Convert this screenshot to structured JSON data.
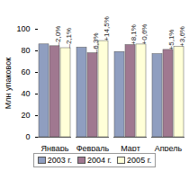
{
  "chart_data": {
    "type": "bar",
    "y_label": "Млн упаковок",
    "categories": [
      "Январь",
      "Февраль",
      "Март",
      "Апрель"
    ],
    "series": [
      {
        "name": "2003 г.",
        "color": "#8f9ec0",
        "values": [
          86,
          83,
          79,
          77
        ]
      },
      {
        "name": "2004 г.",
        "color": "#a07890",
        "values": [
          84.3,
          77.8,
          85.4,
          80.9
        ]
      },
      {
        "name": "2005 г.",
        "color": "#ffffd8",
        "values": [
          82.5,
          89.1,
          85.9,
          83.8
        ]
      }
    ],
    "annotations": [
      {
        "text": "–2,0%",
        "category": "Январь",
        "series": "2004 г."
      },
      {
        "text": "–2,1%",
        "category": "Январь",
        "series": "2005 г."
      },
      {
        "text": "–6,3%",
        "category": "Февраль",
        "series": "2004 г."
      },
      {
        "text": "+14,5%",
        "category": "Февраль",
        "series": "2005 г."
      },
      {
        "text": "+8,1%",
        "category": "Март",
        "series": "2004 г."
      },
      {
        "text": "+0,6%",
        "category": "Март",
        "series": "2005 г."
      },
      {
        "text": "+5,1%",
        "category": "Апрель",
        "series": "2004 г."
      },
      {
        "text": "+3,6%",
        "category": "Апрель",
        "series": "2005 г."
      }
    ],
    "ylim": [
      0,
      100
    ],
    "yticks": [
      0,
      20,
      40,
      60,
      80,
      100
    ],
    "grid": false,
    "legend": "bottom"
  }
}
